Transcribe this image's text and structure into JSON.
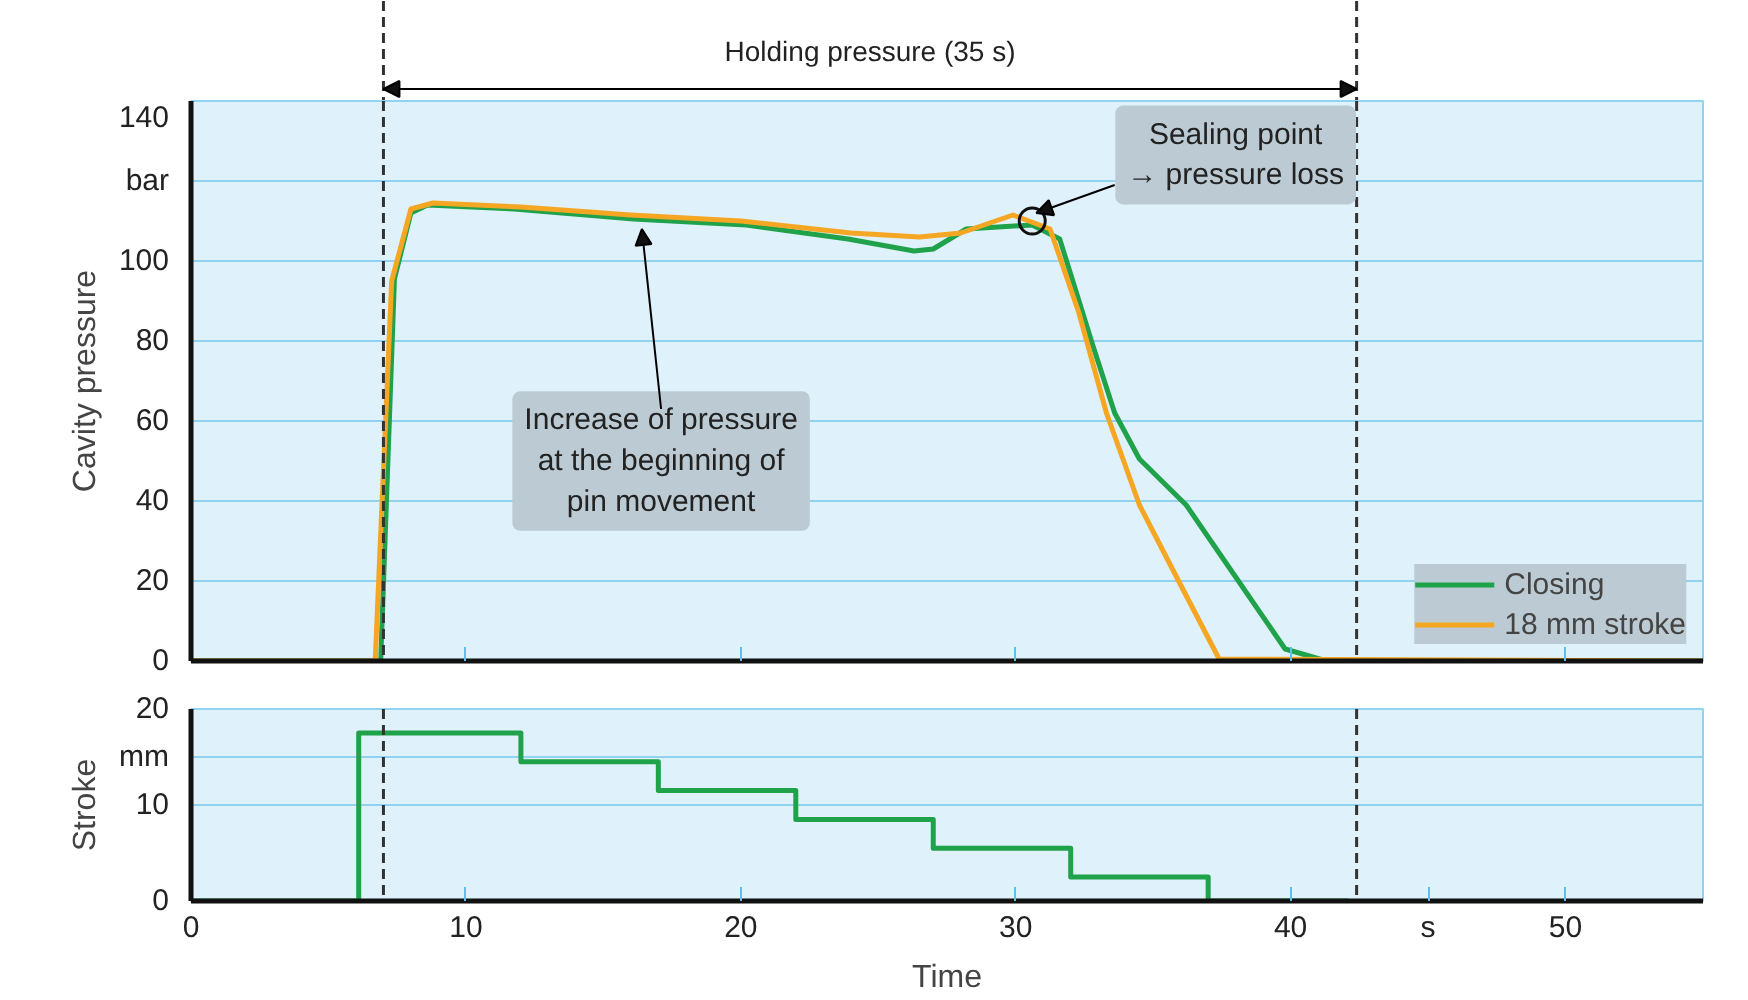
{
  "chart_data": [
    {
      "type": "line",
      "ylabel": "Cavity pressure",
      "xlim": [
        0,
        55
      ],
      "xticks": [
        0,
        10,
        20,
        30,
        40,
        50
      ],
      "ylim": [
        0,
        140
      ],
      "yticks": [
        0,
        20,
        40,
        60,
        80,
        100,
        {
          "value": 120,
          "label": "bar"
        },
        140
      ],
      "tick_labels": "y",
      "grid": "y",
      "legend": "bottom right",
      "series": [
        {
          "name": "Closing",
          "color": "#1fa24a",
          "x": [
            0,
            6.9,
            7.4,
            8.0,
            8.6,
            11.75,
            16.1,
            20.2,
            23.9,
            26.3,
            27.0,
            28.2,
            30.6,
            31.6,
            32.8,
            33.6,
            34.5,
            36.2,
            37.9,
            39.8,
            41.3,
            55
          ],
          "values": [
            0,
            0,
            95.5,
            112,
            114,
            113,
            110.5,
            109,
            105.5,
            102.5,
            103,
            108,
            109,
            105.5,
            79,
            62,
            50.5,
            39,
            22,
            3,
            0,
            0
          ]
        },
        {
          "name": "18 mm stroke",
          "color": "#f5a623",
          "x": [
            0,
            6.7,
            7.3,
            8.0,
            8.8,
            12,
            16,
            20,
            24,
            26.5,
            28,
            29.9,
            31.25,
            32.3,
            33.3,
            34.5,
            36.0,
            37.4,
            55
          ],
          "values": [
            0,
            0,
            95,
            113,
            114.5,
            113.5,
            111.5,
            110,
            107,
            106,
            107,
            111.5,
            108,
            87,
            62,
            39,
            19,
            0.5,
            0
          ]
        }
      ],
      "ref_lines": [
        {
          "axis": "x",
          "value": 7,
          "color": "#333333",
          "line_style": "dashed"
        },
        {
          "axis": "x",
          "value": 42.4,
          "color": "#333333",
          "line_style": "dashed"
        }
      ],
      "annotations": [
        "Holding pressure (35 s)",
        {
          "text": "Increase of pressure\nat the beginning of\npin movement",
          "x": 16.4,
          "y": 110
        },
        {
          "text": "Sealing point\n→ pressure loss",
          "x": 30.6,
          "y": 110
        }
      ]
    },
    {
      "type": "step",
      "xlabel": "Time",
      "ylabel": "Stroke",
      "xlim": [
        0,
        55
      ],
      "xticks": [
        0,
        10,
        20,
        30,
        40,
        {
          "value": 45,
          "label": "s"
        },
        50
      ],
      "ylim": [
        0,
        20
      ],
      "yticks": [
        0,
        10,
        {
          "value": 15,
          "label": "mm"
        },
        20
      ],
      "grid": "y",
      "series": [
        {
          "color": "#1fa24a",
          "x": [
            0,
            6.1,
            12,
            17,
            22,
            27,
            32,
            37,
            42.1
          ],
          "values": [
            0,
            17.5,
            14.5,
            11.5,
            8.5,
            5.5,
            2.5,
            0,
            0
          ]
        }
      ],
      "ref_lines": [
        {
          "axis": "x",
          "value": 7,
          "color": "#333333",
          "line_style": "dashed"
        },
        {
          "axis": "x",
          "value": 42.4,
          "color": "#333333",
          "line_style": "dashed"
        }
      ]
    }
  ]
}
